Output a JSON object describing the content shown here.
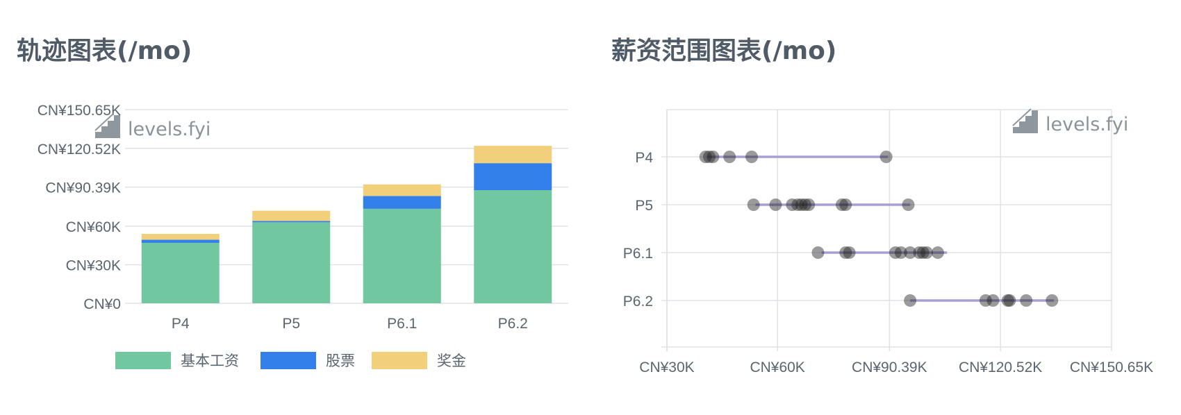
{
  "left_panel": {
    "title": "轨迹图表(/mo)"
  },
  "right_panel": {
    "title": "薪资范围图表(/mo)"
  },
  "watermark": {
    "text": "levels.fyi"
  },
  "colors": {
    "base": "#70c7a0",
    "stock": "#3480ea",
    "bonus": "#f2d07b",
    "grid": "#dfe2e5",
    "range_line": "#a89fd6",
    "dot": "#222222"
  },
  "chart_data": [
    {
      "type": "bar",
      "stacked": true,
      "categories": [
        "P4",
        "P5",
        "P6.1",
        "P6.2"
      ],
      "series": [
        {
          "name": "基本工资",
          "values": [
            47000,
            63000,
            73500,
            88000
          ]
        },
        {
          "name": "股票",
          "values": [
            2500,
            1000,
            10000,
            21000
          ]
        },
        {
          "name": "奖金",
          "values": [
            4500,
            8000,
            9000,
            13500
          ]
        }
      ],
      "ylim": [
        0,
        150650
      ],
      "yticks": [
        0,
        30000,
        60000,
        90390,
        120520,
        150650
      ],
      "ytick_labels": [
        "CN¥0",
        "CN¥30K",
        "CN¥60K",
        "CN¥90.39K",
        "CN¥120.52K",
        "CN¥150.65K"
      ],
      "grid": true,
      "legend": "bottom"
    },
    {
      "type": "scatter",
      "orientation": "horizontal-range",
      "categories": [
        "P4",
        "P5",
        "P6.1",
        "P6.2"
      ],
      "ranges": [
        [
          41000,
          90000
        ],
        [
          54000,
          96000
        ],
        [
          72000,
          106000
        ],
        [
          96000,
          135000
        ]
      ],
      "points": [
        [
          40500,
          41500,
          42500,
          47000,
          53000,
          89500
        ],
        [
          53500,
          59500,
          64000,
          65500,
          66500,
          67500,
          68500,
          77500,
          78500,
          95500
        ],
        [
          71000,
          78500,
          79500,
          92000,
          93500,
          96000,
          98500,
          99500,
          100500,
          103500
        ],
        [
          96000,
          116500,
          118500,
          122500,
          123000,
          127500,
          134500
        ]
      ],
      "xlim": [
        30000,
        150650
      ],
      "xticks": [
        30000,
        60000,
        90390,
        120520,
        150650
      ],
      "xtick_labels": [
        "CN¥30K",
        "CN¥60K",
        "CN¥90.39K",
        "CN¥120.52K",
        "CN¥150.65K"
      ],
      "grid": true
    }
  ]
}
